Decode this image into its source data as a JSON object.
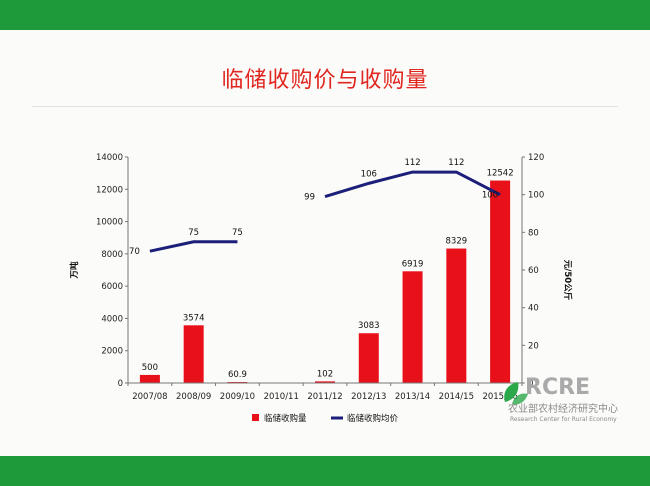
{
  "slide": {
    "title": "临储收购价与收购量"
  },
  "chart_data": {
    "type": "bar",
    "categories": [
      "2007/08",
      "2008/09",
      "2009/10",
      "2010/11",
      "2011/12",
      "2012/13",
      "2013/14",
      "2014/15",
      "2015/16"
    ],
    "series": [
      {
        "name": "临储收购量",
        "type": "bar",
        "axis": "left",
        "color": "#e8111a",
        "values": [
          500,
          3574,
          60.9,
          null,
          102,
          3083,
          6919,
          8329,
          12542
        ],
        "labels": [
          "500",
          "3574",
          "60.9",
          "",
          "102",
          "3083",
          "6919",
          "8329",
          "12542"
        ]
      },
      {
        "name": "临储收购均价",
        "type": "line",
        "axis": "right",
        "color": "#1c1f7a",
        "values": [
          70,
          75,
          75,
          null,
          99,
          106,
          112,
          112,
          100
        ],
        "labels": [
          "70",
          "75",
          "75",
          "",
          "99",
          "106",
          "112",
          "112",
          "100"
        ]
      }
    ],
    "ylabel": "万吨",
    "y2label": "元/50公斤",
    "ylim": [
      0,
      14000
    ],
    "yticks": [
      "0",
      "2000",
      "4000",
      "6000",
      "8000",
      "10000",
      "12000",
      "14000"
    ],
    "y2lim": [
      0,
      120
    ],
    "y2ticks": [
      "0",
      "20",
      "40",
      "60",
      "80",
      "100",
      "120"
    ],
    "legend": "bottom",
    "grid": false
  },
  "logo": {
    "main": "RCRE",
    "cn": "农业部农村经济研究中心",
    "en": "Research Center for Rural Economy",
    "color": "#2aa84a"
  }
}
